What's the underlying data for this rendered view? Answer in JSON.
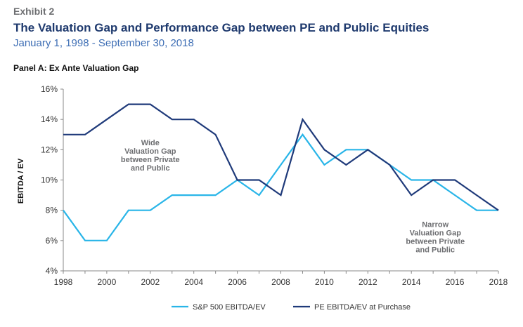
{
  "header": {
    "exhibit": "Exhibit 2",
    "title": "The Valuation Gap and Performance Gap between PE and Public Equities",
    "subtitle": "January 1, 1998 - September 30, 2018",
    "panel": "Panel A: Ex Ante Valuation Gap"
  },
  "chart_data": {
    "type": "line",
    "ylabel": "EBITDA / EV",
    "xlabel": "",
    "xlim": [
      1998,
      2018
    ],
    "ylim": [
      4,
      16
    ],
    "x_ticks": [
      "1998",
      "2000",
      "2002",
      "2004",
      "2006",
      "2008",
      "2010",
      "2012",
      "2014",
      "2016",
      "2018"
    ],
    "y_ticks": [
      "4%",
      "6%",
      "8%",
      "10%",
      "12%",
      "14%",
      "16%"
    ],
    "x": [
      1998,
      1999,
      2000,
      2001,
      2002,
      2003,
      2004,
      2005,
      2006,
      2007,
      2008,
      2009,
      2010,
      2011,
      2012,
      2013,
      2014,
      2015,
      2016,
      2017,
      2018
    ],
    "series": [
      {
        "name": "S&P 500 EBITDA/EV",
        "color": "#29b5e8",
        "values": [
          8,
          6,
          6,
          8,
          8,
          9,
          9,
          9,
          10,
          9,
          11,
          13,
          11,
          12,
          12,
          11,
          10,
          10,
          9,
          8,
          8
        ]
      },
      {
        "name": "PE EBITDA/EV at Purchase",
        "color": "#1f3a7a",
        "values": [
          13,
          13,
          14,
          15,
          15,
          14,
          14,
          13,
          10,
          10,
          9,
          14,
          12,
          11,
          12,
          11,
          9,
          10,
          10,
          9,
          8
        ]
      }
    ],
    "annotations": [
      {
        "lines": [
          "Wide",
          "Valuation Gap",
          "between Private",
          "and Public"
        ],
        "x": 2002,
        "y": 12.3
      },
      {
        "lines": [
          "Narrow",
          "Valuation Gap",
          "between Private",
          "and Public"
        ],
        "x": 2015.1,
        "y": 6.9
      }
    ],
    "grid": false,
    "legend": "bottom"
  }
}
